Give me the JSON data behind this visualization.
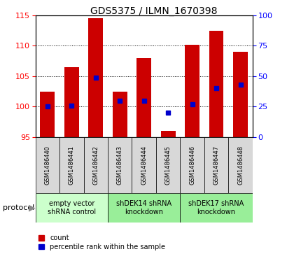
{
  "title": "GDS5375 / ILMN_1670398",
  "samples": [
    "GSM1486440",
    "GSM1486441",
    "GSM1486442",
    "GSM1486443",
    "GSM1486444",
    "GSM1486445",
    "GSM1486446",
    "GSM1486447",
    "GSM1486448"
  ],
  "count_values": [
    102.5,
    106.5,
    114.5,
    102.5,
    108.0,
    96.0,
    110.2,
    112.5,
    109.0
  ],
  "count_bottom": [
    95,
    95,
    95,
    95,
    95,
    95,
    95,
    95,
    95
  ],
  "percentile_values": [
    25,
    26,
    49,
    30,
    30,
    20,
    27,
    40,
    43
  ],
  "ylim_left": [
    95,
    115
  ],
  "ylim_right": [
    0,
    100
  ],
  "yticks_left": [
    95,
    100,
    105,
    110,
    115
  ],
  "yticks_right": [
    0,
    25,
    50,
    75,
    100
  ],
  "bar_color": "#cc0000",
  "dot_color": "#0000cc",
  "plot_bg": "#ffffff",
  "cell_bg": "#d8d8d8",
  "group_colors": [
    "#ccffcc",
    "#99ee99",
    "#99ee99"
  ],
  "group_labels": [
    "empty vector\nshRNA control",
    "shDEK14 shRNA\nknockdown",
    "shDEK17 shRNA\nknockdown"
  ],
  "group_starts": [
    0,
    3,
    6
  ],
  "group_ends": [
    2,
    5,
    8
  ],
  "legend_count_label": "count",
  "legend_pct_label": "percentile rank within the sample",
  "protocol_label": "protocol",
  "title_fontsize": 10,
  "tick_fontsize": 8,
  "sample_fontsize": 6,
  "group_fontsize": 7,
  "legend_fontsize": 7
}
